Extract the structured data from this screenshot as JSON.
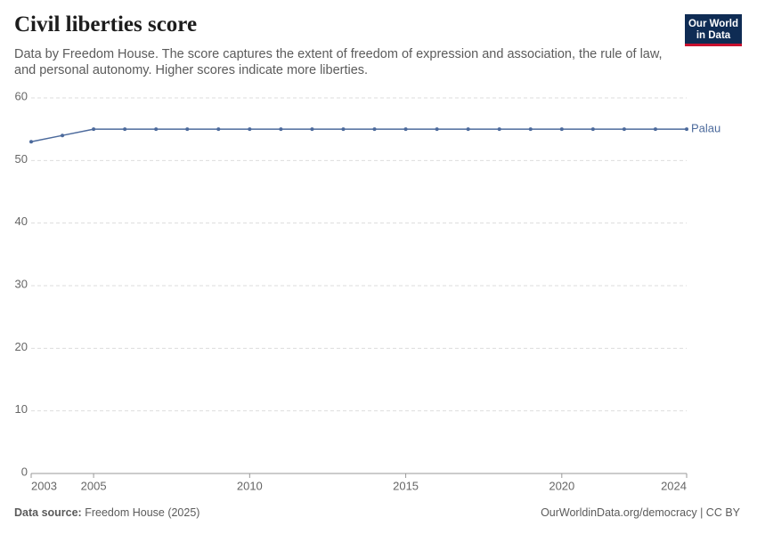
{
  "chart_data": {
    "type": "line",
    "title": "Civil liberties score",
    "subtitle": "Data by Freedom House. The score captures the extent of freedom of expression and association, the rule of law, and personal autonomy. Higher scores indicate more liberties.",
    "x": [
      2003,
      2004,
      2005,
      2006,
      2007,
      2008,
      2009,
      2010,
      2011,
      2012,
      2013,
      2014,
      2015,
      2016,
      2017,
      2018,
      2019,
      2020,
      2021,
      2022,
      2023,
      2024
    ],
    "series": [
      {
        "name": "Palau",
        "color": "#4c6a9c",
        "values": [
          53,
          54,
          55,
          55,
          55,
          55,
          55,
          55,
          55,
          55,
          55,
          55,
          55,
          55,
          55,
          55,
          55,
          55,
          55,
          55,
          55,
          55
        ]
      }
    ],
    "xlim": [
      2003,
      2024
    ],
    "xticks": [
      2003,
      2005,
      2010,
      2015,
      2020,
      2024
    ],
    "ylim": [
      0,
      60
    ],
    "yticks": [
      0,
      10,
      20,
      30,
      40,
      50,
      60
    ],
    "grid": true
  },
  "logo": [
    "Our World",
    "in Data"
  ],
  "footer": {
    "source_label": "Data source:",
    "source": "Freedom House (2025)",
    "url": "OurWorldinData.org/democracy | CC BY"
  }
}
